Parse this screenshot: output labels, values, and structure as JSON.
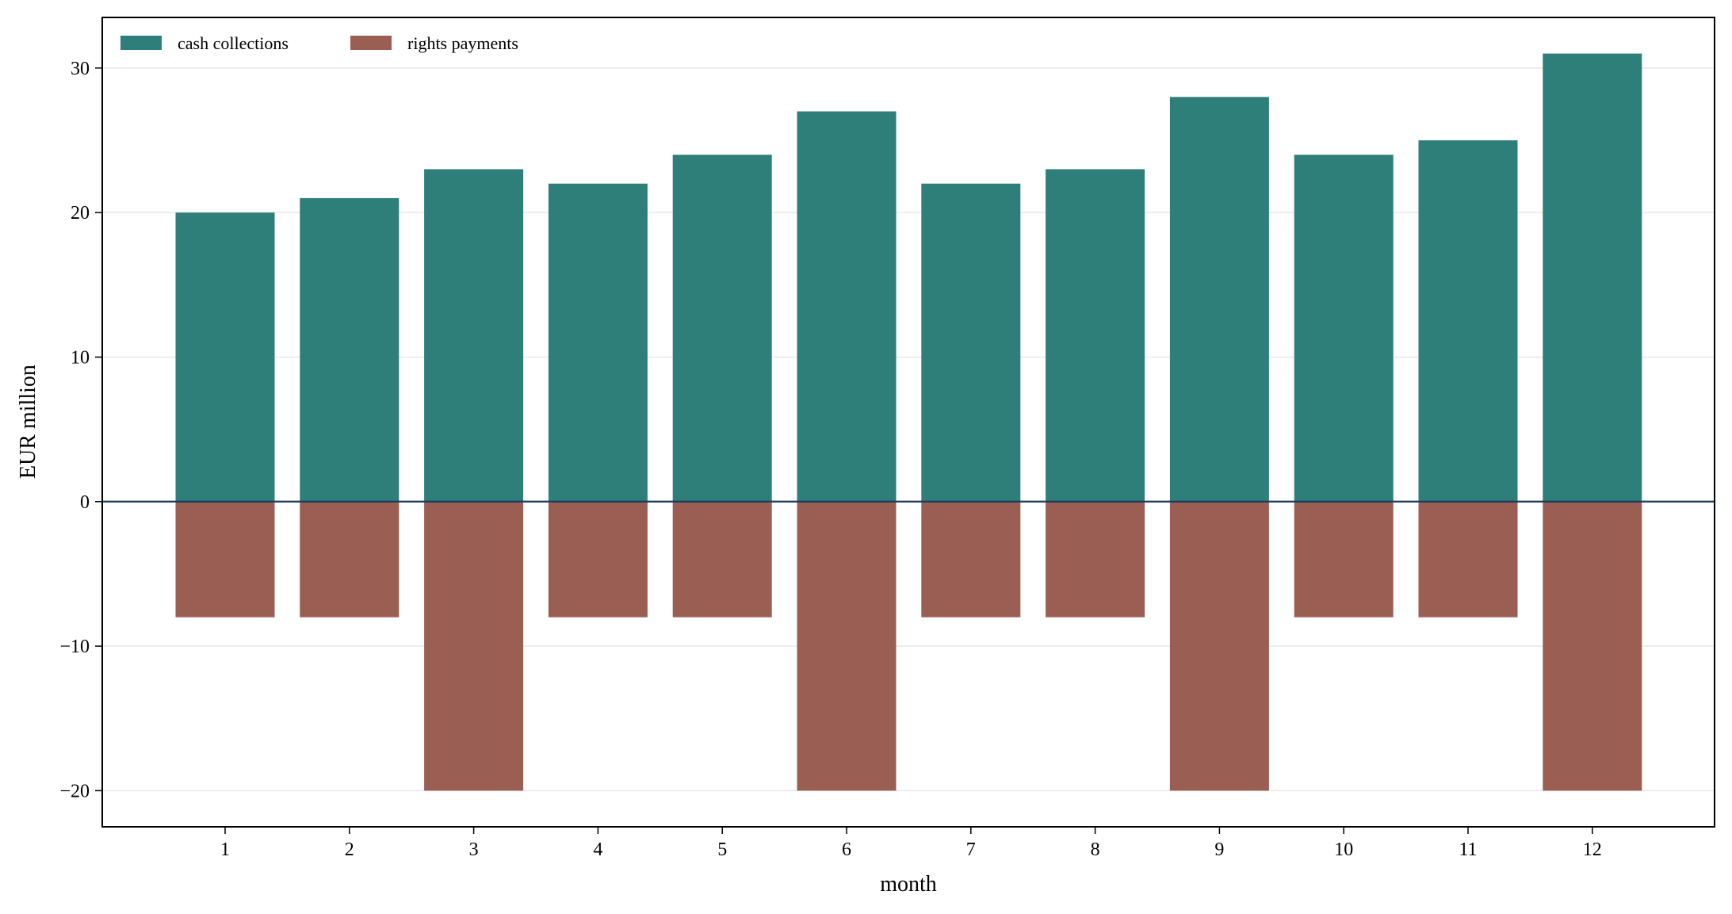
{
  "chart_data": {
    "type": "bar",
    "title": "",
    "xlabel": "month",
    "ylabel": "EUR million",
    "categories": [
      "1",
      "2",
      "3",
      "4",
      "5",
      "6",
      "7",
      "8",
      "9",
      "10",
      "11",
      "12"
    ],
    "series": [
      {
        "name": "cash collections",
        "color": "#2e7f79",
        "values": [
          20,
          21,
          23,
          22,
          24,
          27,
          22,
          23,
          28,
          24,
          25,
          31
        ]
      },
      {
        "name": "rights payments",
        "color": "#9b5e52",
        "values": [
          -8,
          -8,
          -20,
          -8,
          -8,
          -20,
          -8,
          -8,
          -20,
          -8,
          -8,
          -20
        ]
      }
    ],
    "ylim": [
      -22.5,
      33.5
    ],
    "yticks": [
      -20,
      -10,
      0,
      10,
      20,
      30
    ],
    "ytick_labels": [
      "−20",
      "−10",
      "0",
      "10",
      "20",
      "30"
    ],
    "zero_line_color": "#1d3a5f",
    "grid": "horizontal",
    "legend_position": "top-left"
  }
}
